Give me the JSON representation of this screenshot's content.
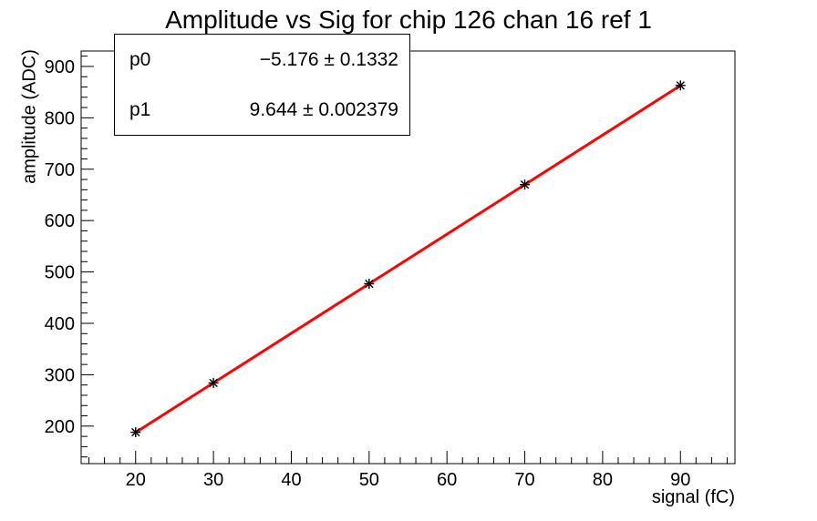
{
  "title": "Amplitude vs Sig for chip 126 chan 16 ref 1",
  "stats_box": {
    "rows": [
      {
        "name": "p0",
        "value": "−5.176 ± 0.1332"
      },
      {
        "name": "p1",
        "value": "9.644 ± 0.002379"
      }
    ]
  },
  "colors": {
    "fit_line": "#ff0000",
    "marker": "#000000",
    "axis": "#000000",
    "background": "#ffffff"
  },
  "chart_data": {
    "type": "scatter",
    "title": "Amplitude vs Sig for chip 126 chan 16 ref 1",
    "xlabel": "signal (fC)",
    "ylabel": "amplitude (ADC)",
    "xlim": [
      13,
      97
    ],
    "ylim": [
      127,
      930
    ],
    "grid": false,
    "x_major_ticks": [
      20,
      30,
      40,
      50,
      60,
      70,
      80,
      90
    ],
    "x_minor_step": 2,
    "y_major_ticks": [
      200,
      300,
      400,
      500,
      600,
      700,
      800,
      900
    ],
    "y_minor_step": 20,
    "points": {
      "x": [
        20,
        30,
        50,
        70,
        90
      ],
      "y": [
        188,
        284,
        477,
        670,
        863
      ]
    },
    "marker_style": "asterisk",
    "fit": {
      "p0": -5.176,
      "p0_err": 0.1332,
      "p1": 9.644,
      "p1_err": 0.002379,
      "x_range": [
        20,
        90
      ]
    }
  }
}
